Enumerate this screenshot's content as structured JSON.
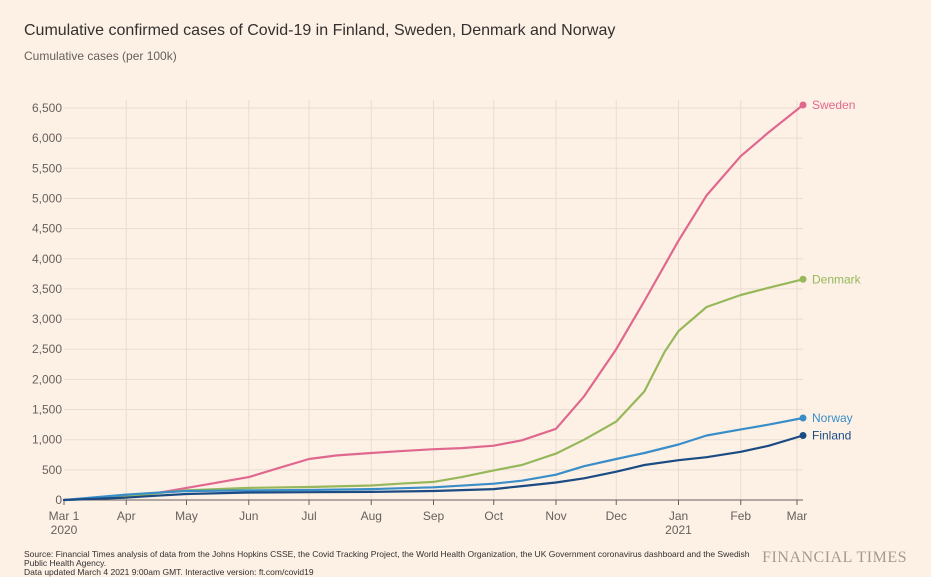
{
  "chart_data": {
    "type": "line",
    "title": "Cumulative confirmed cases of Covid-19 in Finland, Sweden, Denmark and Norway",
    "subtitle": "Cumulative cases (per 100k)",
    "ylim": [
      0,
      6500
    ],
    "y_ticks": [
      0,
      500,
      1000,
      1500,
      2000,
      2500,
      3000,
      3500,
      4000,
      4500,
      5000,
      5500,
      6000,
      6500
    ],
    "x_ticks": [
      {
        "date": "2020-03-01",
        "label": "Mar 1",
        "sublabel": "2020"
      },
      {
        "date": "2020-04-01",
        "label": "Apr",
        "sublabel": ""
      },
      {
        "date": "2020-05-01",
        "label": "May",
        "sublabel": ""
      },
      {
        "date": "2020-06-01",
        "label": "Jun",
        "sublabel": ""
      },
      {
        "date": "2020-07-01",
        "label": "Jul",
        "sublabel": ""
      },
      {
        "date": "2020-08-01",
        "label": "Aug",
        "sublabel": ""
      },
      {
        "date": "2020-09-01",
        "label": "Sep",
        "sublabel": ""
      },
      {
        "date": "2020-10-01",
        "label": "Oct",
        "sublabel": ""
      },
      {
        "date": "2020-11-01",
        "label": "Nov",
        "sublabel": ""
      },
      {
        "date": "2020-12-01",
        "label": "Dec",
        "sublabel": ""
      },
      {
        "date": "2021-01-01",
        "label": "Jan",
        "sublabel": "2021"
      },
      {
        "date": "2021-02-01",
        "label": "Feb",
        "sublabel": ""
      },
      {
        "date": "2021-03-01",
        "label": "Mar",
        "sublabel": ""
      }
    ],
    "xlim": [
      "2020-03-01",
      "2021-03-04"
    ],
    "grid": true,
    "legend": "end-of-line labels",
    "series": [
      {
        "name": "Sweden",
        "color": "#e0688f",
        "points": [
          [
            "2020-03-01",
            0
          ],
          [
            "2020-04-01",
            60
          ],
          [
            "2020-04-15",
            110
          ],
          [
            "2020-05-01",
            200
          ],
          [
            "2020-05-15",
            280
          ],
          [
            "2020-06-01",
            380
          ],
          [
            "2020-06-15",
            520
          ],
          [
            "2020-07-01",
            680
          ],
          [
            "2020-07-15",
            740
          ],
          [
            "2020-08-01",
            780
          ],
          [
            "2020-08-15",
            810
          ],
          [
            "2020-08-31",
            840
          ],
          [
            "2020-09-15",
            860
          ],
          [
            "2020-10-01",
            900
          ],
          [
            "2020-10-15",
            990
          ],
          [
            "2020-11-01",
            1180
          ],
          [
            "2020-11-15",
            1720
          ],
          [
            "2020-12-01",
            2500
          ],
          [
            "2020-12-15",
            3300
          ],
          [
            "2021-01-01",
            4300
          ],
          [
            "2021-01-15",
            5050
          ],
          [
            "2021-02-01",
            5700
          ],
          [
            "2021-02-15",
            6100
          ],
          [
            "2021-03-04",
            6550
          ]
        ]
      },
      {
        "name": "Denmark",
        "color": "#96b85a",
        "points": [
          [
            "2020-03-01",
            0
          ],
          [
            "2020-04-01",
            50
          ],
          [
            "2020-04-15",
            110
          ],
          [
            "2020-05-01",
            160
          ],
          [
            "2020-06-01",
            200
          ],
          [
            "2020-07-01",
            215
          ],
          [
            "2020-08-01",
            240
          ],
          [
            "2020-08-15",
            270
          ],
          [
            "2020-09-01",
            300
          ],
          [
            "2020-09-15",
            380
          ],
          [
            "2020-10-01",
            490
          ],
          [
            "2020-10-15",
            580
          ],
          [
            "2020-11-01",
            770
          ],
          [
            "2020-11-15",
            1000
          ],
          [
            "2020-12-01",
            1300
          ],
          [
            "2020-12-15",
            1800
          ],
          [
            "2020-12-25",
            2450
          ],
          [
            "2021-01-01",
            2800
          ],
          [
            "2021-01-15",
            3200
          ],
          [
            "2021-02-01",
            3400
          ],
          [
            "2021-02-15",
            3520
          ],
          [
            "2021-03-04",
            3660
          ]
        ]
      },
      {
        "name": "Norway",
        "color": "#3a8ec8",
        "points": [
          [
            "2020-03-01",
            0
          ],
          [
            "2020-04-01",
            90
          ],
          [
            "2020-04-15",
            120
          ],
          [
            "2020-05-01",
            150
          ],
          [
            "2020-06-01",
            160
          ],
          [
            "2020-07-01",
            165
          ],
          [
            "2020-08-01",
            180
          ],
          [
            "2020-09-01",
            210
          ],
          [
            "2020-10-01",
            270
          ],
          [
            "2020-10-15",
            320
          ],
          [
            "2020-11-01",
            420
          ],
          [
            "2020-11-15",
            560
          ],
          [
            "2020-12-01",
            680
          ],
          [
            "2020-12-15",
            780
          ],
          [
            "2021-01-01",
            920
          ],
          [
            "2021-01-15",
            1070
          ],
          [
            "2021-02-01",
            1170
          ],
          [
            "2021-02-15",
            1250
          ],
          [
            "2021-03-04",
            1360
          ]
        ]
      },
      {
        "name": "Finland",
        "color": "#1b4b82",
        "points": [
          [
            "2020-03-01",
            0
          ],
          [
            "2020-04-01",
            40
          ],
          [
            "2020-04-15",
            70
          ],
          [
            "2020-05-01",
            100
          ],
          [
            "2020-06-01",
            125
          ],
          [
            "2020-07-01",
            130
          ],
          [
            "2020-08-01",
            135
          ],
          [
            "2020-09-01",
            150
          ],
          [
            "2020-10-01",
            180
          ],
          [
            "2020-10-15",
            230
          ],
          [
            "2020-11-01",
            290
          ],
          [
            "2020-11-15",
            360
          ],
          [
            "2020-12-01",
            470
          ],
          [
            "2020-12-15",
            580
          ],
          [
            "2021-01-01",
            660
          ],
          [
            "2021-01-15",
            710
          ],
          [
            "2021-02-01",
            800
          ],
          [
            "2021-02-15",
            900
          ],
          [
            "2021-03-04",
            1070
          ]
        ]
      }
    ]
  },
  "footer": {
    "source": "Source: Financial Times analysis of data from the Johns Hopkins CSSE, the Covid Tracking Project, the World Health Organization, the UK Government coronavirus dashboard and the Swedish Public Health Agency.",
    "updated": "Data updated March 4 2021 9:00am GMT. Interactive version: ft.com/covid19"
  },
  "brand": "FINANCIAL TIMES"
}
